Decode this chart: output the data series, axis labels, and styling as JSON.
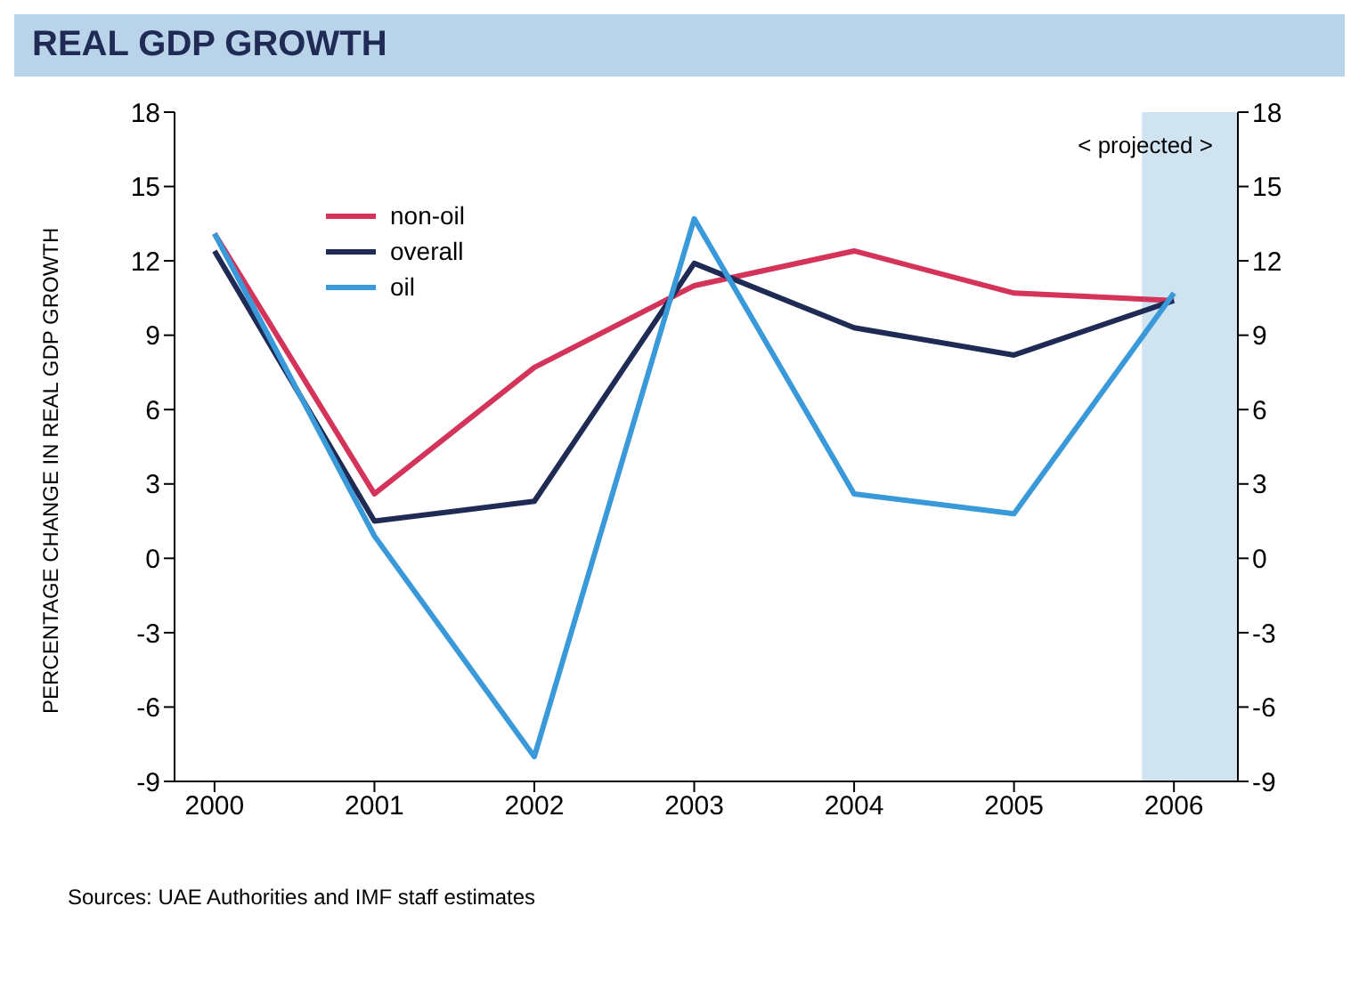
{
  "chart_data": {
    "type": "line",
    "title": "REAL GDP GROWTH",
    "ylabel": "PERCENTAGE CHANGE IN REAL GDP GROWTH",
    "x": [
      2000,
      2001,
      2002,
      2003,
      2004,
      2005,
      2006
    ],
    "series": [
      {
        "name": "non-oil",
        "color": "#d4345a",
        "values": [
          13.1,
          2.6,
          7.7,
          11,
          12.4,
          10.7,
          10.4
        ]
      },
      {
        "name": "overall",
        "color": "#1f2a55",
        "values": [
          12.4,
          1.5,
          2.3,
          11.9,
          9.3,
          8.2,
          10.4
        ]
      },
      {
        "name": "oil",
        "color": "#3a9ad9",
        "values": [
          13.1,
          0.9,
          -8,
          13.7,
          2.6,
          1.8,
          10.7
        ]
      }
    ],
    "xlim": [
      1999.75,
      2006.4
    ],
    "xticks": [
      2000,
      2001,
      2002,
      2003,
      2004,
      2005,
      2006
    ],
    "ylim": [
      -9,
      18
    ],
    "yticks": [
      -9,
      -6,
      -3,
      0,
      3,
      6,
      9,
      12,
      15,
      18
    ],
    "y2lim": [
      -9,
      18
    ],
    "y2ticks": [
      -9,
      -6,
      -3,
      0,
      3,
      6,
      9,
      12,
      15,
      18
    ],
    "bands": [
      {
        "axis": "x",
        "from": 2005.8,
        "to": 2006.4,
        "label": "< projected >",
        "color": "#cfe3f1"
      }
    ],
    "grid": false,
    "legend": "top left",
    "marker": "none",
    "line_style": "solid",
    "annotations": [
      "Sources: UAE Authorities and IMF staff estimates"
    ]
  }
}
